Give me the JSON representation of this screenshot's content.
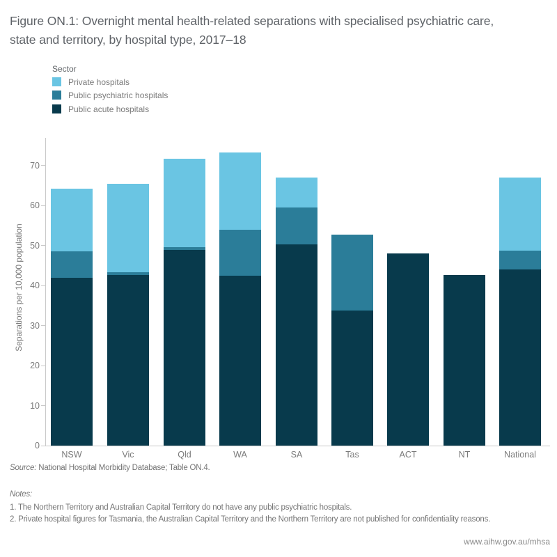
{
  "title": "Figure ON.1: Overnight mental health-related separations with specialised psychiatric care, state and territory, by hospital type, 2017–18",
  "legend": {
    "title": "Sector",
    "items": [
      {
        "label": "Private hospitals",
        "color": "#6ac5e3"
      },
      {
        "label": "Public psychiatric hospitals",
        "color": "#2b7d99"
      },
      {
        "label": "Public acute hospitals",
        "color": "#083a4c"
      }
    ]
  },
  "chart_data": {
    "type": "bar",
    "stacked": true,
    "title": "Figure ON.1: Overnight mental health-related separations with specialised psychiatric care, state and territory, by hospital type, 2017–18",
    "categories": [
      "NSW",
      "Vic",
      "Qld",
      "WA",
      "SA",
      "Tas",
      "ACT",
      "NT",
      "National"
    ],
    "series": [
      {
        "name": "Public acute hospitals",
        "color": "#083a4c",
        "values": [
          42.0,
          42.6,
          48.9,
          42.4,
          50.3,
          33.8,
          48.0,
          42.7,
          44.0
        ]
      },
      {
        "name": "Public psychiatric hospitals",
        "color": "#2b7d99",
        "values": [
          6.5,
          0.8,
          0.8,
          11.5,
          9.2,
          18.9,
          0,
          0,
          4.8
        ]
      },
      {
        "name": "Private hospitals",
        "color": "#6ac5e3",
        "values": [
          15.8,
          22.0,
          22.1,
          19.4,
          7.5,
          0,
          0,
          0,
          18.2
        ]
      }
    ],
    "totals": [
      64.3,
      65.4,
      71.8,
      73.3,
      67.0,
      52.7,
      48.0,
      42.7,
      67.0
    ],
    "xlabel": "",
    "ylabel": "Separations per 10,000 population",
    "yticks": [
      0,
      10,
      20,
      30,
      40,
      50,
      60,
      70
    ],
    "ylim": [
      0,
      75.5
    ],
    "grid": false,
    "legend_position": "top-left"
  },
  "footer": {
    "source_label": "Source:",
    "source_text": "National Hospital Morbidity Database; Table ON.4.",
    "notes_label": "Notes:",
    "notes": [
      "1. The Northern Territory and Australian Capital Territory do not have any public psychiatric hospitals.",
      "2. Private hospital figures for Tasmania, the Australian Capital Territory and the Northern Territory are not published for confidentiality reasons."
    ],
    "link": "www.aihw.gov.au/mhsa"
  }
}
